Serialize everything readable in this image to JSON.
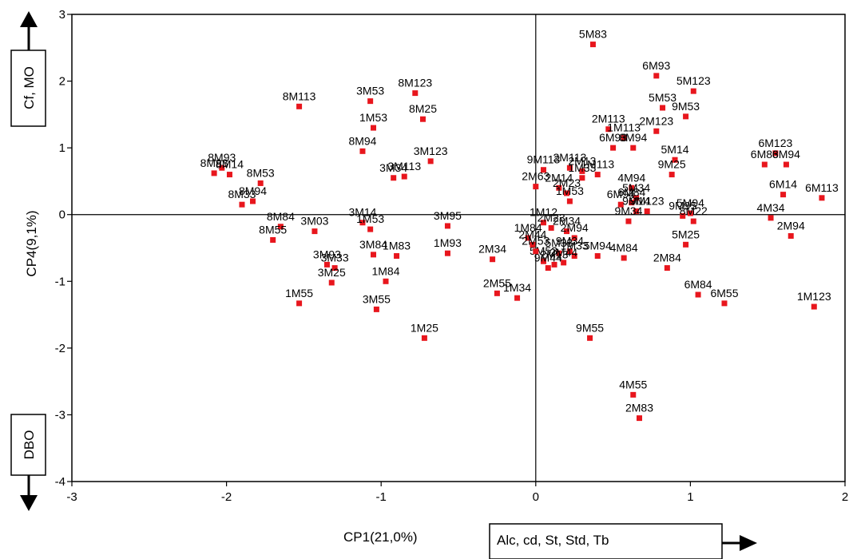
{
  "chart_data": {
    "type": "scatter",
    "xlabel": "CP1(21,0%)",
    "ylabel": "CP4(9,1%)",
    "xlim": [
      -3,
      2
    ],
    "ylim": [
      -4,
      3
    ],
    "xticks": [
      "-3",
      "-2",
      "-1",
      "0",
      "1",
      "2"
    ],
    "yticks": [
      "3",
      "2",
      "1",
      "0",
      "-1",
      "-2",
      "-3",
      "-4"
    ],
    "marker_color": "#e8161d",
    "annotations": {
      "top": "Cf, MO",
      "bottom": "DBO",
      "right": "Alc, cd, St, Std, Tb"
    },
    "points": [
      {
        "label": "5M83",
        "x": 0.37,
        "y": 2.55
      },
      {
        "label": "6M93",
        "x": 0.78,
        "y": 2.08
      },
      {
        "label": "5M123",
        "x": 1.02,
        "y": 1.85
      },
      {
        "label": "5M53",
        "x": 0.82,
        "y": 1.6
      },
      {
        "label": "9M53",
        "x": 0.97,
        "y": 1.47
      },
      {
        "label": "2M113",
        "x": 0.47,
        "y": 1.28
      },
      {
        "label": "2M123",
        "x": 0.78,
        "y": 1.25
      },
      {
        "label": "1M113",
        "x": 0.57,
        "y": 1.15
      },
      {
        "label": "6M93",
        "x": 0.5,
        "y": 1.0
      },
      {
        "label": "8M94",
        "x": 0.63,
        "y": 1.0
      },
      {
        "label": "5M14",
        "x": 0.9,
        "y": 0.82
      },
      {
        "label": "9M25",
        "x": 0.88,
        "y": 0.6
      },
      {
        "label": "6M123",
        "x": 1.55,
        "y": 0.92
      },
      {
        "label": "6M83",
        "x": 1.48,
        "y": 0.75
      },
      {
        "label": "6M94",
        "x": 1.62,
        "y": 0.75
      },
      {
        "label": "6M14",
        "x": 1.6,
        "y": 0.3
      },
      {
        "label": "6M113",
        "x": 1.85,
        "y": 0.25
      },
      {
        "label": "4M34",
        "x": 1.52,
        "y": -0.05
      },
      {
        "label": "2M94",
        "x": 1.65,
        "y": -0.32
      },
      {
        "label": "1M123",
        "x": 1.8,
        "y": -1.38
      },
      {
        "label": "9M113",
        "x": 0.05,
        "y": 0.67
      },
      {
        "label": "2M113",
        "x": 0.22,
        "y": 0.7
      },
      {
        "label": "2M13",
        "x": 0.3,
        "y": 0.65
      },
      {
        "label": "1M113",
        "x": 0.4,
        "y": 0.6
      },
      {
        "label": "1M33",
        "x": 0.3,
        "y": 0.55
      },
      {
        "label": "2M63",
        "x": 0.0,
        "y": 0.42
      },
      {
        "label": "4M94",
        "x": 0.62,
        "y": 0.4
      },
      {
        "label": "2M14",
        "x": 0.15,
        "y": 0.4
      },
      {
        "label": "5M34",
        "x": 0.65,
        "y": 0.25
      },
      {
        "label": "2M23",
        "x": 0.2,
        "y": 0.32
      },
      {
        "label": "1M53",
        "x": 0.22,
        "y": 0.2
      },
      {
        "label": "6M84",
        "x": 0.62,
        "y": 0.18
      },
      {
        "label": "6M94",
        "x": 0.55,
        "y": 0.15
      },
      {
        "label": "9M14",
        "x": 0.65,
        "y": 0.05
      },
      {
        "label": "9M123",
        "x": 0.72,
        "y": 0.05
      },
      {
        "label": "9M34",
        "x": 0.6,
        "y": -0.1
      },
      {
        "label": "5M94",
        "x": 1.0,
        "y": 0.02
      },
      {
        "label": "9M95",
        "x": 0.95,
        "y": -0.02
      },
      {
        "label": "8M22",
        "x": 1.02,
        "y": -0.1
      },
      {
        "label": "5M25",
        "x": 0.97,
        "y": -0.45
      },
      {
        "label": "2M84",
        "x": 0.85,
        "y": -0.8
      },
      {
        "label": "6M84",
        "x": 1.05,
        "y": -1.2
      },
      {
        "label": "6M55",
        "x": 1.22,
        "y": -1.33
      },
      {
        "label": "5M94",
        "x": 0.4,
        "y": -0.62
      },
      {
        "label": "4M84",
        "x": 0.57,
        "y": -0.65
      },
      {
        "label": "1M12",
        "x": 0.05,
        "y": -0.12
      },
      {
        "label": "2M23",
        "x": 0.1,
        "y": -0.2
      },
      {
        "label": "2M34",
        "x": 0.2,
        "y": -0.25
      },
      {
        "label": "2M94",
        "x": 0.25,
        "y": -0.35
      },
      {
        "label": "9M34",
        "x": 0.22,
        "y": -0.55
      },
      {
        "label": "5M33",
        "x": 0.15,
        "y": -0.58
      },
      {
        "label": "1M33",
        "x": 0.25,
        "y": -0.62
      },
      {
        "label": "5M53",
        "x": 0.05,
        "y": -0.7
      },
      {
        "label": "2M13",
        "x": 0.12,
        "y": -0.75
      },
      {
        "label": "2M44",
        "x": 0.18,
        "y": -0.72
      },
      {
        "label": "9M44",
        "x": 0.08,
        "y": -0.8
      },
      {
        "label": "9M55",
        "x": 0.35,
        "y": -1.85
      },
      {
        "label": "4M55",
        "x": 0.63,
        "y": -2.7
      },
      {
        "label": "2M83",
        "x": 0.67,
        "y": -3.05
      },
      {
        "label": "8M93",
        "x": -2.03,
        "y": 0.7
      },
      {
        "label": "8M83",
        "x": -2.08,
        "y": 0.62
      },
      {
        "label": "8M14",
        "x": -1.98,
        "y": 0.6
      },
      {
        "label": "8M53",
        "x": -1.78,
        "y": 0.47
      },
      {
        "label": "8M94",
        "x": -1.83,
        "y": 0.2
      },
      {
        "label": "8M33",
        "x": -1.9,
        "y": 0.15
      },
      {
        "label": "8M84",
        "x": -1.65,
        "y": -0.18
      },
      {
        "label": "8M55",
        "x": -1.7,
        "y": -0.38
      },
      {
        "label": "3M03",
        "x": -1.43,
        "y": -0.25
      },
      {
        "label": "3M14",
        "x": -1.12,
        "y": -0.12
      },
      {
        "label": "1M53",
        "x": -1.07,
        "y": -0.22
      },
      {
        "label": "3M84",
        "x": -1.05,
        "y": -0.6
      },
      {
        "label": "1M83",
        "x": -0.9,
        "y": -0.62
      },
      {
        "label": "1M84",
        "x": -0.97,
        "y": -1.0
      },
      {
        "label": "3M55",
        "x": -1.03,
        "y": -1.42
      },
      {
        "label": "3M93",
        "x": -1.35,
        "y": -0.75
      },
      {
        "label": "3M33",
        "x": -1.3,
        "y": -0.8
      },
      {
        "label": "3M25",
        "x": -1.32,
        "y": -1.02
      },
      {
        "label": "1M55",
        "x": -1.53,
        "y": -1.33
      },
      {
        "label": "1M25",
        "x": -0.72,
        "y": -1.85
      },
      {
        "label": "8M113",
        "x": -1.53,
        "y": 1.62
      },
      {
        "label": "3M53",
        "x": -1.07,
        "y": 1.7
      },
      {
        "label": "8M123",
        "x": -0.78,
        "y": 1.82
      },
      {
        "label": "1M53",
        "x": -1.05,
        "y": 1.3
      },
      {
        "label": "8M25",
        "x": -0.73,
        "y": 1.43
      },
      {
        "label": "8M94",
        "x": -1.12,
        "y": 0.95
      },
      {
        "label": "3M123",
        "x": -0.68,
        "y": 0.8
      },
      {
        "label": "3M34",
        "x": -0.92,
        "y": 0.55
      },
      {
        "label": "3M113",
        "x": -0.85,
        "y": 0.57
      },
      {
        "label": "3M95",
        "x": -0.57,
        "y": -0.17
      },
      {
        "label": "1M93",
        "x": -0.57,
        "y": -0.58
      },
      {
        "label": "2M34",
        "x": -0.28,
        "y": -0.67
      },
      {
        "label": "2M55",
        "x": -0.25,
        "y": -1.18
      },
      {
        "label": "1M34",
        "x": -0.12,
        "y": -1.25
      },
      {
        "label": "1M84",
        "x": -0.05,
        "y": -0.35
      },
      {
        "label": "2M44",
        "x": -0.02,
        "y": -0.45
      },
      {
        "label": "2M53",
        "x": 0.0,
        "y": -0.55
      }
    ]
  }
}
